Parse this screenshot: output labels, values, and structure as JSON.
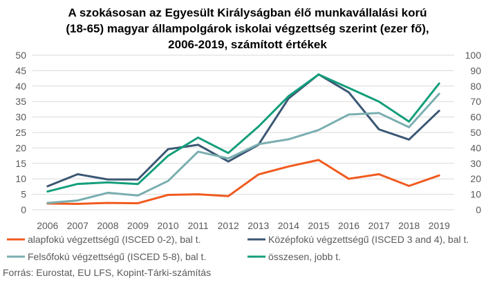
{
  "chart_data": {
    "type": "line",
    "title": [
      "A szokásosan az Egyesült Királyságban élő munkavállalási korú",
      "(18-65) magyar állampolgárok iskolai végzettség szerint (ezer fő),",
      "2006-2019, számított értékek"
    ],
    "x": [
      "2006",
      "2007",
      "2008",
      "2009",
      "2010",
      "2011",
      "2012",
      "2013",
      "2014",
      "2015",
      "2016",
      "2017",
      "2018",
      "2019"
    ],
    "y_left": {
      "min": 0,
      "max": 50,
      "step": 5,
      "ticks": [
        "0",
        "5",
        "10",
        "15",
        "20",
        "25",
        "30",
        "35",
        "40",
        "45",
        "50"
      ]
    },
    "y_right": {
      "min": 0,
      "max": 100,
      "step": 10,
      "ticks": [
        "0",
        "10",
        "20",
        "30",
        "40",
        "50",
        "60",
        "70",
        "80",
        "90",
        "100"
      ]
    },
    "grid": true,
    "legend_position": "bottom",
    "series": [
      {
        "name": "alapfokú végzettségű (ISCED 0-2), bal t.",
        "axis": "left",
        "color": "#f05a1e",
        "values": [
          2.0,
          1.9,
          2.2,
          2.1,
          4.8,
          5.0,
          4.4,
          11.4,
          14.0,
          16.1,
          10.0,
          11.5,
          7.7,
          11.1
        ]
      },
      {
        "name": "Középfokú  végzettségű (ISCED 3 and 4), bal t.",
        "axis": "left",
        "color": "#3b5774",
        "values": [
          7.6,
          11.5,
          9.8,
          9.8,
          19.6,
          21.0,
          15.6,
          21.0,
          36.0,
          43.8,
          38.0,
          26.0,
          22.7,
          32.0
        ]
      },
      {
        "name": "Felsőfokú végzettségű (ISCED 5-8), bal t.",
        "axis": "left",
        "color": "#7aaeb0",
        "values": [
          2.2,
          3.0,
          5.5,
          4.6,
          9.3,
          18.8,
          16.6,
          21.2,
          22.8,
          25.8,
          30.8,
          31.3,
          26.7,
          37.5
        ]
      },
      {
        "name": "összesen, jobb t.",
        "axis": "right",
        "color": "#139e7b",
        "values": [
          11.8,
          16.7,
          17.7,
          16.6,
          34.9,
          46.7,
          36.7,
          53.8,
          73.5,
          87.5,
          78.8,
          70.0,
          57.0,
          81.7
        ]
      }
    ],
    "source": "Forrás: Eurostat, EU LFS, Kopint-Tárki-számítás"
  }
}
